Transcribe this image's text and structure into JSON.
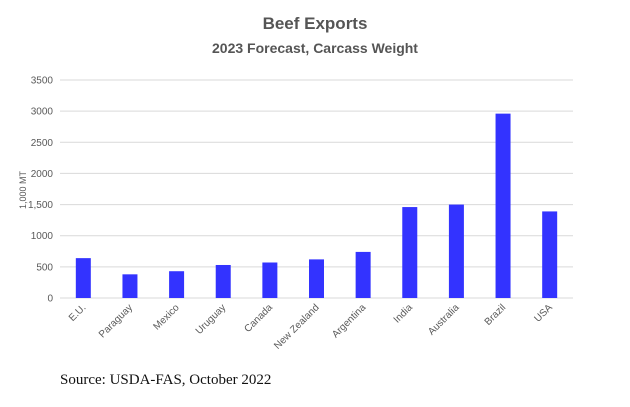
{
  "chart_data": {
    "type": "bar",
    "title": "Beef Exports",
    "subtitle": "2023 Forecast, Carcass Weight",
    "ylabel": "1,000 MT",
    "xlabel": "",
    "categories": [
      "E.U.",
      "Paraguay",
      "Mexico",
      "Uruguay",
      "Canada",
      "New Zealand",
      "Argentina",
      "India",
      "Australia",
      "Brazil",
      "USA"
    ],
    "values": [
      640,
      380,
      430,
      530,
      570,
      620,
      740,
      1460,
      1500,
      2960,
      1390
    ],
    "ylim": [
      0,
      3500
    ],
    "yticks": [
      0,
      500,
      1000,
      1500,
      2000,
      2500,
      3000,
      3500
    ],
    "ytick_labels": [
      "0",
      "500",
      "1000",
      "1,500",
      "2000",
      "2500",
      "3000",
      "3500"
    ],
    "grid": true,
    "legend": "none",
    "bar_color": "#3333ff"
  },
  "source": "Source:  USDA-FAS, October 2022"
}
